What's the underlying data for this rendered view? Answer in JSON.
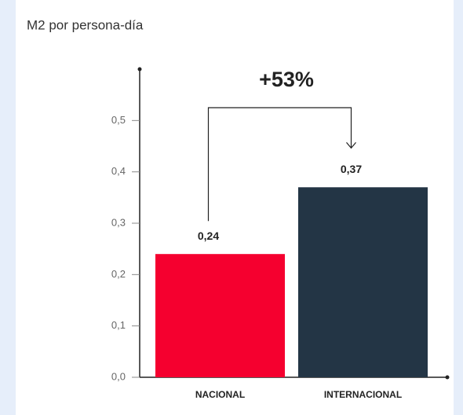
{
  "chart_data": {
    "type": "bar",
    "title": "M2 por persona-día",
    "annotation": "+53%",
    "categories": [
      "NACIONAL",
      "INTERNACIONAL"
    ],
    "values": [
      0.24,
      0.37
    ],
    "value_labels": [
      "0,24",
      "0,37"
    ],
    "colors": [
      "#f5002f",
      "#233545"
    ],
    "ylim": [
      0,
      0.6
    ],
    "yticks": [
      {
        "value": 0,
        "label": "0,0"
      },
      {
        "value": 0.1,
        "label": "0,1"
      },
      {
        "value": 0.2,
        "label": "0,2"
      },
      {
        "value": 0.3,
        "label": "0,3"
      },
      {
        "value": 0.4,
        "label": "0,4"
      },
      {
        "value": 0.5,
        "label": "0,5"
      }
    ],
    "grid": false
  }
}
